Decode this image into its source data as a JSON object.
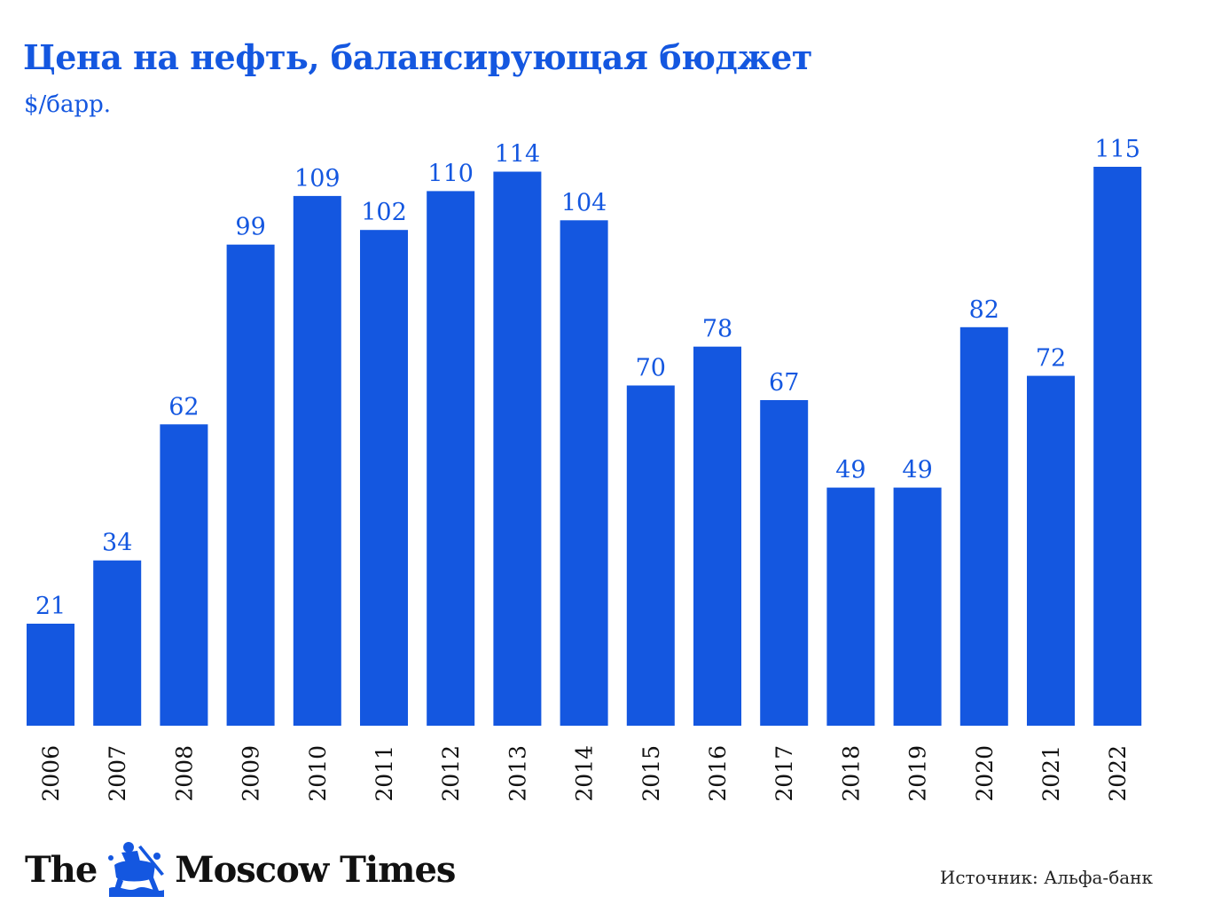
{
  "header": {
    "title": "Цена на нефть, балансирующая бюджет",
    "subtitle": "$/барр."
  },
  "footer": {
    "logo_left": "The",
    "logo_right": "Moscow Times",
    "source": "Источник: Альфа-банк"
  },
  "colors": {
    "bar": "#1457e0",
    "label": "#1457e0",
    "tick": "#111111"
  },
  "chart_data": {
    "type": "bar",
    "title": "Цена на нефть, балансирующая бюджет",
    "ylabel": "$/барр.",
    "xlabel": "",
    "categories": [
      "2006",
      "2007",
      "2008",
      "2009",
      "2010",
      "2011",
      "2012",
      "2013",
      "2014",
      "2015",
      "2016",
      "2017",
      "2018",
      "2019",
      "2020",
      "2021",
      "2022"
    ],
    "values": [
      21,
      34,
      62,
      99,
      109,
      102,
      110,
      114,
      104,
      70,
      78,
      67,
      49,
      49,
      82,
      72,
      115
    ],
    "ylim": [
      0,
      115
    ],
    "grid": false,
    "data_labels": true
  }
}
